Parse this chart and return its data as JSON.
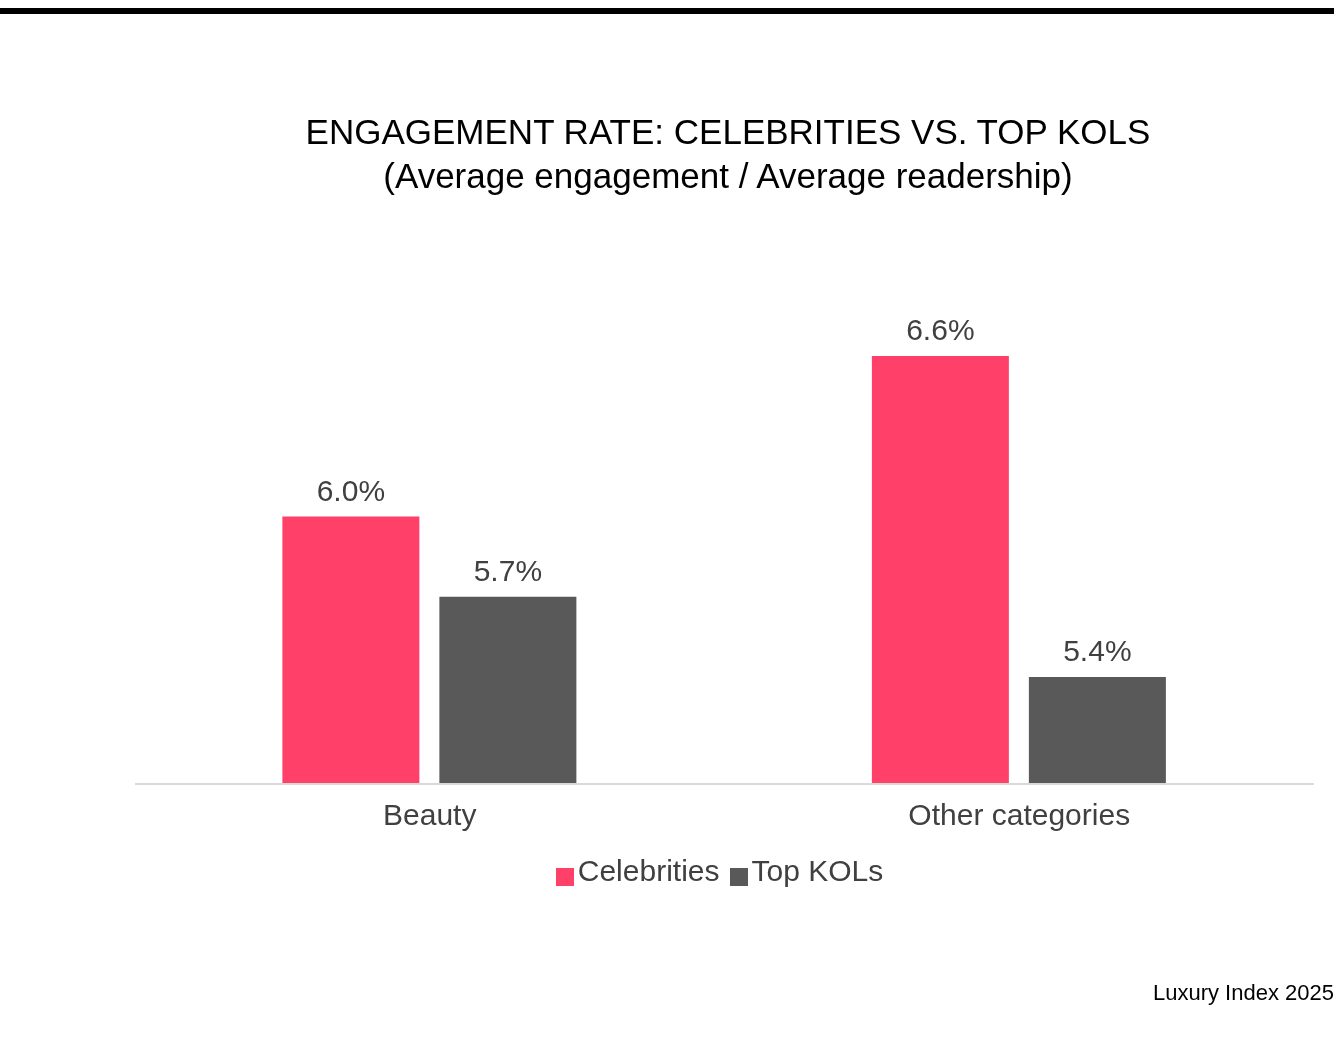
{
  "chart_data": {
    "type": "bar",
    "title": "ENGAGEMENT RATE: CELEBRITIES VS. TOP KOLS",
    "subtitle": "(Average engagement / Average readership)",
    "categories": [
      "Beauty",
      "Other categories"
    ],
    "series": [
      {
        "name": "Celebrities",
        "color": "#ff4069",
        "values": [
          6.0,
          6.6
        ],
        "value_labels": [
          "6.0%",
          "6.6%"
        ]
      },
      {
        "name": "Top KOLs",
        "color": "#595959",
        "values": [
          5.7,
          5.4
        ],
        "value_labels": [
          "5.7%",
          "5.4%"
        ]
      }
    ],
    "ylim": [
      5,
      6.6
    ],
    "tick_labels": "x",
    "legend": "bottom",
    "annotations": [
      "Luxury Index 2025"
    ]
  }
}
